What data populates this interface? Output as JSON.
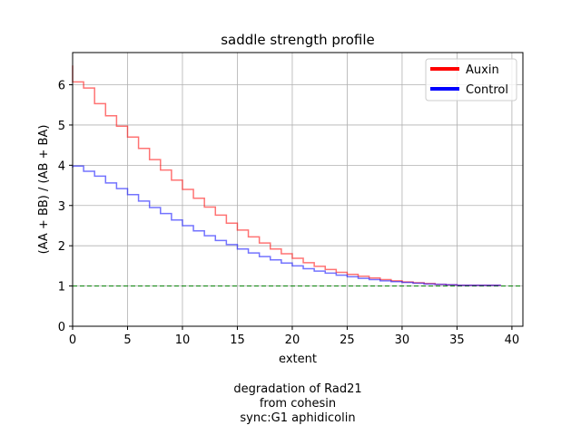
{
  "chart_data": {
    "type": "line",
    "title": "saddle strength profile",
    "xlabel": "extent",
    "ylabel": "(AA + BB) / (AB + BA)",
    "xlim": [
      0,
      41
    ],
    "ylim": [
      0,
      6.8
    ],
    "xticks": [
      0,
      5,
      10,
      15,
      20,
      25,
      30,
      35,
      40
    ],
    "yticks": [
      0,
      1,
      2,
      3,
      4,
      5,
      6
    ],
    "grid": true,
    "legend_position": "top-right",
    "drawstyle": "steps-pre",
    "reference_line": {
      "y": 1,
      "color": "#008000",
      "style": "dashed"
    },
    "x": [
      0,
      1,
      2,
      3,
      4,
      5,
      6,
      7,
      8,
      9,
      10,
      11,
      12,
      13,
      14,
      15,
      16,
      17,
      18,
      19,
      20,
      21,
      22,
      23,
      24,
      25,
      26,
      27,
      28,
      29,
      30,
      31,
      32,
      33,
      34,
      35,
      36,
      37,
      38,
      39
    ],
    "series": [
      {
        "name": "Auxin",
        "color": "#ff0000",
        "values": [
          6.48,
          6.07,
          5.92,
          5.53,
          5.23,
          4.97,
          4.7,
          4.42,
          4.14,
          3.88,
          3.63,
          3.4,
          3.18,
          2.96,
          2.76,
          2.56,
          2.39,
          2.22,
          2.07,
          1.92,
          1.8,
          1.69,
          1.58,
          1.49,
          1.41,
          1.34,
          1.29,
          1.24,
          1.2,
          1.16,
          1.13,
          1.1,
          1.08,
          1.06,
          1.04,
          1.03,
          1.02,
          1.02,
          1.02,
          1.02
        ]
      },
      {
        "name": "Control",
        "color": "#0000ff",
        "values": [
          3.94,
          3.98,
          3.85,
          3.73,
          3.56,
          3.42,
          3.27,
          3.11,
          2.95,
          2.8,
          2.64,
          2.5,
          2.37,
          2.25,
          2.13,
          2.03,
          1.92,
          1.82,
          1.73,
          1.65,
          1.57,
          1.5,
          1.43,
          1.37,
          1.32,
          1.27,
          1.23,
          1.19,
          1.16,
          1.13,
          1.11,
          1.09,
          1.07,
          1.05,
          1.04,
          1.03,
          1.02,
          1.02,
          1.02,
          1.02
        ]
      }
    ],
    "caption": [
      "degradation of Rad21",
      "from cohesin",
      "sync:G1 aphidicolin"
    ]
  }
}
